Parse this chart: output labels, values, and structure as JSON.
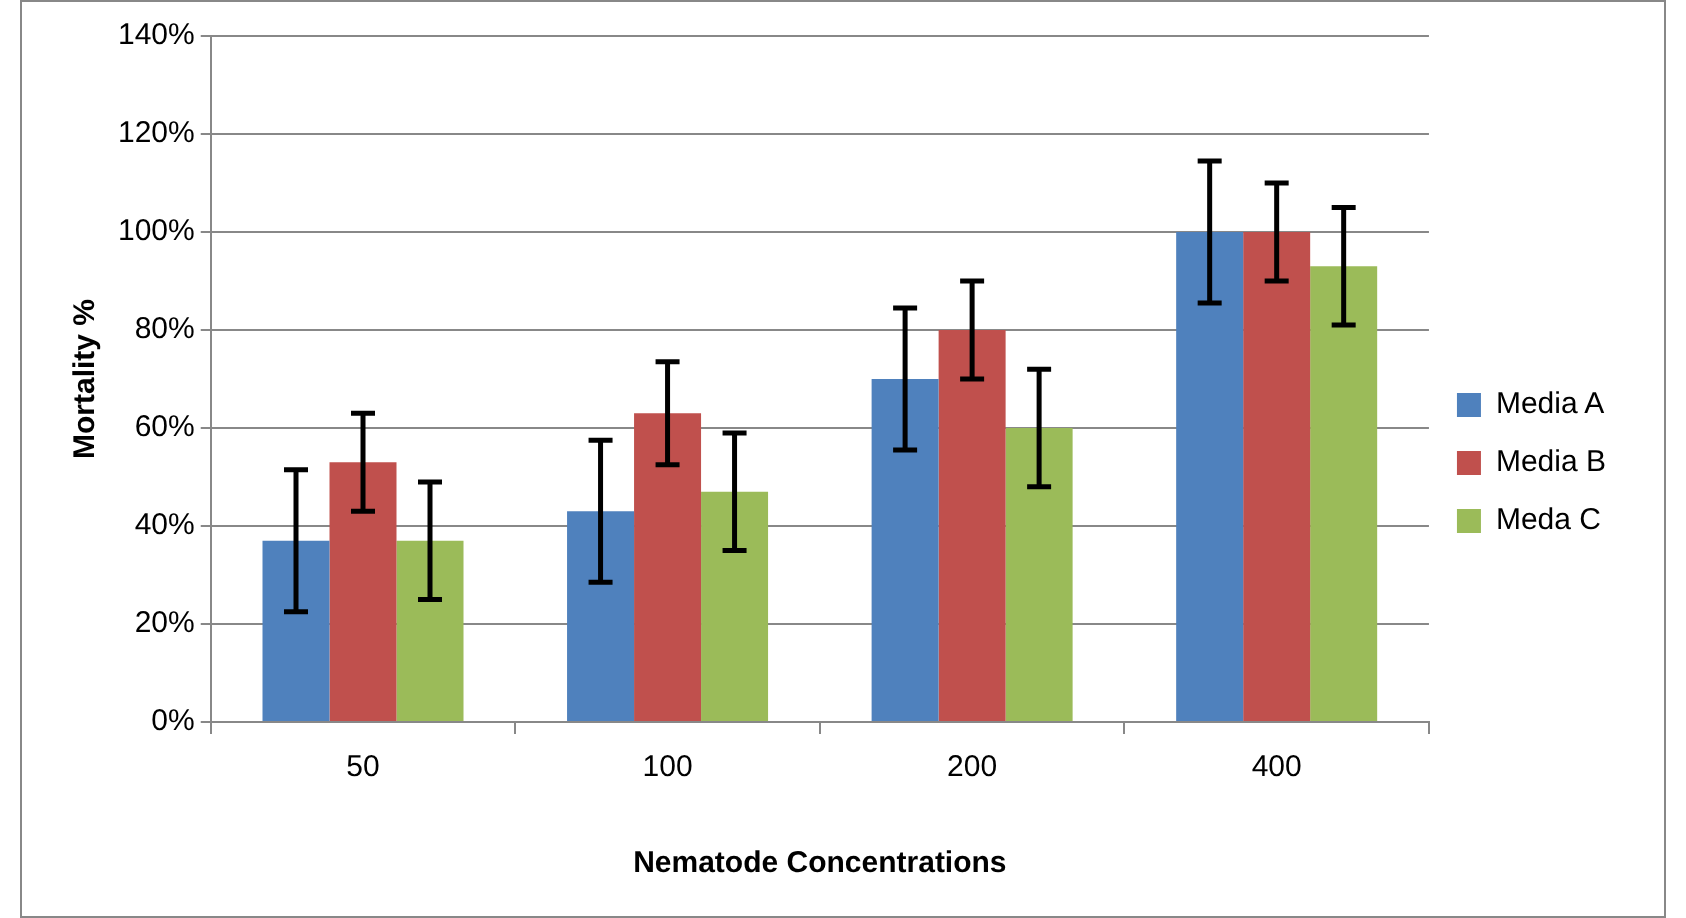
{
  "chart_data": {
    "type": "bar",
    "xlabel": "Nematode Concentrations",
    "ylabel": "Mortality %",
    "categories": [
      "50",
      "100",
      "200",
      "400"
    ],
    "series": [
      {
        "name": "Media A",
        "color": "#4f81bd",
        "values": [
          37,
          43,
          70,
          100
        ],
        "errors": [
          14.5,
          14.5,
          14.5,
          14.5
        ]
      },
      {
        "name": "Media B",
        "color": "#c0504d",
        "values": [
          53,
          63,
          80,
          100
        ],
        "errors": [
          10,
          10.5,
          10,
          10
        ]
      },
      {
        "name": "Meda C",
        "color": "#9bbb59",
        "values": [
          37,
          47,
          60,
          93
        ],
        "errors": [
          12,
          12,
          12,
          12
        ]
      }
    ],
    "ylim": [
      0,
      140
    ],
    "yticks": [
      {
        "value": 0,
        "label": "0%"
      },
      {
        "value": 20,
        "label": "20%"
      },
      {
        "value": 40,
        "label": "40%"
      },
      {
        "value": 60,
        "label": "60%"
      },
      {
        "value": 80,
        "label": "80%"
      },
      {
        "value": 100,
        "label": "100%"
      },
      {
        "value": 120,
        "label": "120%"
      },
      {
        "value": 140,
        "label": "140%"
      }
    ],
    "grid": "y",
    "legend": "right"
  }
}
